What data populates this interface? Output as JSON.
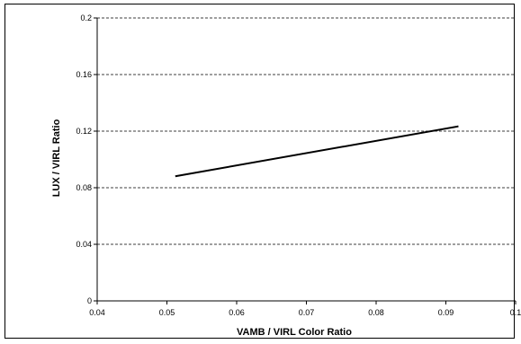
{
  "chart_data": {
    "type": "line",
    "title": "",
    "xlabel": "VAMB / VIRL Color Ratio",
    "ylabel": "LUX / VIRL Ratio",
    "xlim": [
      0.04,
      0.1
    ],
    "ylim": [
      0,
      0.2
    ],
    "x_ticks": [
      "0.04",
      "0.05",
      "0.06",
      "0.07",
      "0.08",
      "0.09",
      "0.1"
    ],
    "y_ticks": [
      "0",
      "0.04",
      "0.08",
      "0.12",
      "0.16",
      "0.2"
    ],
    "grid": "horizontal-dashed",
    "series": [
      {
        "x": [
          0.0512,
          0.0918
        ],
        "y": [
          0.0881,
          0.1234
        ],
        "color": "#000000"
      }
    ]
  }
}
